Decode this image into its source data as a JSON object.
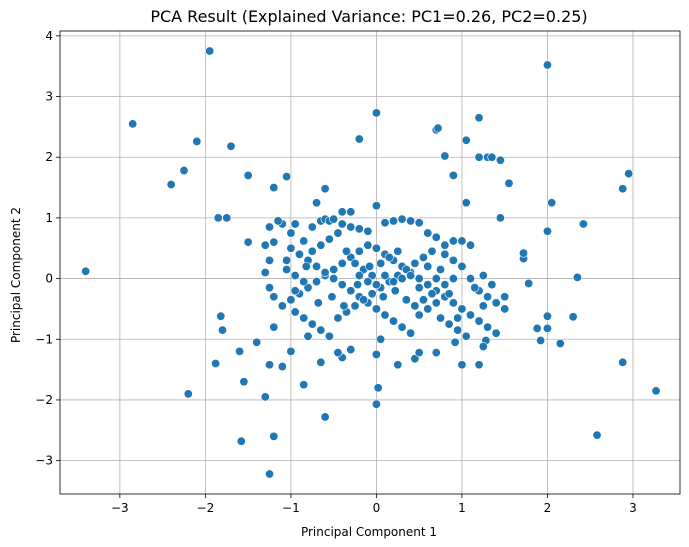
{
  "chart_data": {
    "type": "scatter",
    "title": "PCA Result (Explained Variance: PC1=0.26, PC2=0.25)",
    "xlabel": "Principal Component 1",
    "ylabel": "Principal Component 2",
    "xlim": [
      -3.7,
      3.55
    ],
    "ylim": [
      -3.55,
      4.08
    ],
    "xticks": [
      -3,
      -2,
      -1,
      0,
      1,
      2,
      3
    ],
    "yticks": [
      -3,
      -2,
      -1,
      0,
      1,
      2,
      3,
      4
    ],
    "grid": true,
    "marker_color": "#1f77b4",
    "points": [
      [
        -3.4,
        0.12
      ],
      [
        -2.85,
        2.55
      ],
      [
        -2.4,
        1.55
      ],
      [
        -2.25,
        1.78
      ],
      [
        -2.1,
        2.26
      ],
      [
        -1.95,
        3.75
      ],
      [
        -1.7,
        2.18
      ],
      [
        -1.85,
        1.0
      ],
      [
        -1.75,
        1.0
      ],
      [
        -1.5,
        1.7
      ],
      [
        -2.2,
        -1.9
      ],
      [
        -1.88,
        -1.4
      ],
      [
        -1.8,
        -0.85
      ],
      [
        -1.82,
        -0.62
      ],
      [
        -1.6,
        -1.2
      ],
      [
        -1.55,
        -1.7
      ],
      [
        -1.58,
        -2.68
      ],
      [
        -1.3,
        -1.95
      ],
      [
        -1.25,
        -3.22
      ],
      [
        -1.2,
        -2.6
      ],
      [
        -1.4,
        -1.05
      ],
      [
        -1.25,
        -1.42
      ],
      [
        -1.1,
        -1.45
      ],
      [
        -1.0,
        -1.2
      ],
      [
        -0.85,
        -1.75
      ],
      [
        -0.6,
        -2.28
      ],
      [
        -0.7,
        1.25
      ],
      [
        -0.6,
        1.48
      ],
      [
        -1.2,
        1.5
      ],
      [
        -1.05,
        1.68
      ],
      [
        -0.3,
        1.1
      ],
      [
        -0.4,
        1.1
      ],
      [
        -0.2,
        2.3
      ],
      [
        0.0,
        2.73
      ],
      [
        0.7,
        2.45
      ],
      [
        0.72,
        2.48
      ],
      [
        0.8,
        2.02
      ],
      [
        1.05,
        2.28
      ],
      [
        1.2,
        2.65
      ],
      [
        1.2,
        2.0
      ],
      [
        1.3,
        2.0
      ],
      [
        1.35,
        2.0
      ],
      [
        1.45,
        1.95
      ],
      [
        1.55,
        1.57
      ],
      [
        0.9,
        1.7
      ],
      [
        1.05,
        1.25
      ],
      [
        2.0,
        3.52
      ],
      [
        1.45,
        1.0
      ],
      [
        2.05,
        1.25
      ],
      [
        2.0,
        0.78
      ],
      [
        1.72,
        0.33
      ],
      [
        1.72,
        0.42
      ],
      [
        1.78,
        -0.08
      ],
      [
        2.42,
        0.9
      ],
      [
        2.35,
        0.02
      ],
      [
        2.88,
        1.48
      ],
      [
        2.95,
        1.73
      ],
      [
        2.0,
        -0.62
      ],
      [
        2.0,
        -0.82
      ],
      [
        1.88,
        -0.82
      ],
      [
        1.92,
        -1.02
      ],
      [
        2.15,
        -1.07
      ],
      [
        2.3,
        -0.63
      ],
      [
        1.28,
        -1.02
      ],
      [
        1.25,
        -1.12
      ],
      [
        1.2,
        -1.42
      ],
      [
        1.0,
        -1.42
      ],
      [
        2.88,
        -1.38
      ],
      [
        3.27,
        -1.85
      ],
      [
        2.58,
        -2.58
      ],
      [
        0.0,
        -2.07
      ],
      [
        0.02,
        -1.8
      ],
      [
        0.0,
        -1.25
      ],
      [
        0.05,
        -1.0
      ],
      [
        0.25,
        -1.42
      ],
      [
        -0.65,
        -1.38
      ],
      [
        -0.4,
        -1.3
      ],
      [
        -0.3,
        -1.17
      ],
      [
        -0.45,
        -1.22
      ],
      [
        0.45,
        -1.32
      ],
      [
        0.5,
        -1.22
      ],
      [
        0.7,
        -1.22
      ],
      [
        0.92,
        -1.05
      ],
      [
        -0.8,
        -0.95
      ],
      [
        -1.2,
        -0.8
      ],
      [
        -1.5,
        0.6
      ],
      [
        -1.3,
        0.55
      ],
      [
        -1.25,
        0.85
      ],
      [
        -1.1,
        0.9
      ],
      [
        -1.0,
        0.75
      ],
      [
        -0.95,
        0.9
      ],
      [
        -0.85,
        0.62
      ],
      [
        -0.75,
        0.85
      ],
      [
        -0.65,
        0.95
      ],
      [
        -0.6,
        0.98
      ],
      [
        -0.55,
        0.95
      ],
      [
        -0.5,
        0.98
      ],
      [
        -0.4,
        0.9
      ],
      [
        -0.3,
        0.85
      ],
      [
        -0.2,
        0.82
      ],
      [
        -0.1,
        0.78
      ],
      [
        0.0,
        1.2
      ],
      [
        0.1,
        0.92
      ],
      [
        0.2,
        0.95
      ],
      [
        0.3,
        0.98
      ],
      [
        0.4,
        0.95
      ],
      [
        0.5,
        0.92
      ],
      [
        0.6,
        0.75
      ],
      [
        0.7,
        0.68
      ],
      [
        0.8,
        0.55
      ],
      [
        0.9,
        0.62
      ],
      [
        1.0,
        0.62
      ],
      [
        1.1,
        0.55
      ],
      [
        -1.25,
        0.3
      ],
      [
        -1.3,
        0.1
      ],
      [
        -1.25,
        -0.15
      ],
      [
        -1.2,
        -0.3
      ],
      [
        -1.1,
        -0.45
      ],
      [
        -1.0,
        -0.35
      ],
      [
        -0.9,
        -0.25
      ],
      [
        -0.8,
        -0.15
      ],
      [
        -0.7,
        -0.05
      ],
      [
        -0.6,
        0.05
      ],
      [
        -0.5,
        0.15
      ],
      [
        -0.4,
        0.25
      ],
      [
        -0.3,
        0.35
      ],
      [
        -0.2,
        0.45
      ],
      [
        -0.1,
        0.55
      ],
      [
        0.0,
        0.5
      ],
      [
        0.1,
        0.4
      ],
      [
        0.2,
        0.3
      ],
      [
        0.3,
        0.2
      ],
      [
        0.4,
        0.1
      ],
      [
        0.5,
        0.0
      ],
      [
        0.6,
        -0.1
      ],
      [
        0.7,
        -0.2
      ],
      [
        0.8,
        -0.3
      ],
      [
        0.9,
        -0.4
      ],
      [
        1.0,
        -0.5
      ],
      [
        1.1,
        -0.6
      ],
      [
        1.2,
        -0.7
      ],
      [
        1.3,
        -0.8
      ],
      [
        1.4,
        -0.9
      ],
      [
        1.5,
        -0.5
      ],
      [
        1.2,
        -0.2
      ],
      [
        1.1,
        0.0
      ],
      [
        1.0,
        0.2
      ],
      [
        0.9,
        0.3
      ],
      [
        0.8,
        0.4
      ],
      [
        -1.2,
        0.6
      ],
      [
        -1.0,
        0.5
      ],
      [
        -0.9,
        0.4
      ],
      [
        -0.8,
        0.3
      ],
      [
        -0.7,
        0.2
      ],
      [
        -0.6,
        0.1
      ],
      [
        -0.5,
        0.0
      ],
      [
        -0.4,
        -0.1
      ],
      [
        -0.3,
        -0.2
      ],
      [
        -0.2,
        -0.3
      ],
      [
        -0.1,
        -0.4
      ],
      [
        0.0,
        -0.5
      ],
      [
        0.1,
        -0.6
      ],
      [
        0.2,
        -0.7
      ],
      [
        0.3,
        -0.8
      ],
      [
        0.4,
        -0.9
      ],
      [
        0.5,
        -0.6
      ],
      [
        0.6,
        -0.5
      ],
      [
        0.7,
        -0.4
      ],
      [
        0.8,
        -0.1
      ],
      [
        0.9,
        0.0
      ],
      [
        -0.95,
        -0.55
      ],
      [
        -0.85,
        -0.65
      ],
      [
        -0.75,
        -0.75
      ],
      [
        -0.65,
        -0.85
      ],
      [
        -0.55,
        -0.95
      ],
      [
        -0.45,
        -0.65
      ],
      [
        -0.35,
        -0.55
      ],
      [
        -0.25,
        -0.45
      ],
      [
        -0.15,
        -0.35
      ],
      [
        -0.05,
        -0.25
      ],
      [
        0.05,
        -0.15
      ],
      [
        0.15,
        -0.05
      ],
      [
        0.25,
        0.05
      ],
      [
        0.35,
        0.15
      ],
      [
        0.45,
        0.25
      ],
      [
        0.55,
        0.35
      ],
      [
        0.65,
        0.45
      ],
      [
        0.75,
        0.15
      ],
      [
        0.85,
        -0.25
      ],
      [
        0.95,
        -0.65
      ],
      [
        -1.15,
        0.95
      ],
      [
        -1.05,
        0.15
      ],
      [
        -0.95,
        0.05
      ],
      [
        -0.85,
        -0.05
      ],
      [
        -0.75,
        0.45
      ],
      [
        -0.65,
        0.55
      ],
      [
        -0.55,
        0.65
      ],
      [
        -0.45,
        0.75
      ],
      [
        -0.35,
        0.45
      ],
      [
        -0.25,
        0.25
      ],
      [
        -0.15,
        0.15
      ],
      [
        -0.05,
        0.05
      ],
      [
        0.05,
        0.25
      ],
      [
        0.15,
        0.35
      ],
      [
        0.25,
        0.45
      ],
      [
        0.35,
        -0.35
      ],
      [
        0.45,
        -0.45
      ],
      [
        0.55,
        -0.35
      ],
      [
        0.65,
        -0.25
      ],
      [
        0.75,
        -0.65
      ],
      [
        0.85,
        -0.75
      ],
      [
        0.95,
        -0.85
      ],
      [
        1.05,
        -0.95
      ],
      [
        1.15,
        -0.15
      ],
      [
        1.25,
        -0.45
      ],
      [
        -0.2,
        0.05
      ],
      [
        -0.1,
        -0.05
      ],
      [
        0.0,
        -0.1
      ],
      [
        0.1,
        0.05
      ],
      [
        0.2,
        -0.05
      ],
      [
        0.3,
        0.0
      ],
      [
        0.4,
        0.05
      ],
      [
        0.5,
        -0.15
      ],
      [
        0.6,
        0.2
      ],
      [
        0.7,
        0.0
      ],
      [
        -1.05,
        0.3
      ],
      [
        -0.95,
        -0.2
      ],
      [
        -0.82,
        0.2
      ],
      [
        -0.68,
        -0.4
      ],
      [
        -0.52,
        -0.3
      ],
      [
        -0.38,
        -0.45
      ],
      [
        -0.22,
        -0.1
      ],
      [
        -0.08,
        0.2
      ],
      [
        0.08,
        -0.3
      ],
      [
        0.22,
        -0.2
      ],
      [
        1.3,
        -0.3
      ],
      [
        1.4,
        -0.4
      ],
      [
        1.5,
        -0.3
      ],
      [
        1.35,
        -0.1
      ],
      [
        1.25,
        0.05
      ]
    ]
  }
}
